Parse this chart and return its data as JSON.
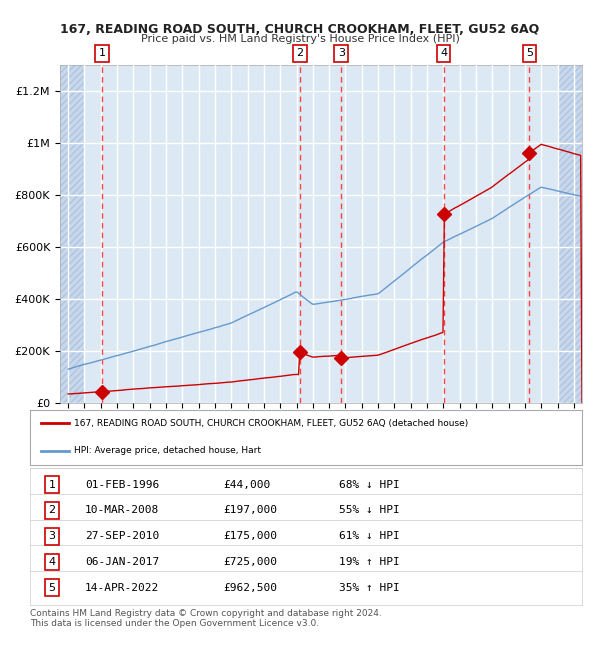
{
  "title_line1": "167, READING ROAD SOUTH, CHURCH CROOKHAM, FLEET, GU52 6AQ",
  "title_line2": "Price paid vs. HM Land Registry's House Price Index (HPI)",
  "background_color": "#dce9f5",
  "red_line_color": "#cc0000",
  "blue_line_color": "#6699cc",
  "sale_marker_color": "#cc0000",
  "sale_dates_x": [
    1996.08,
    2008.19,
    2010.74,
    2017.01,
    2022.28
  ],
  "sale_prices_y": [
    44000,
    197000,
    175000,
    725000,
    962500
  ],
  "sale_labels": [
    "1",
    "2",
    "3",
    "4",
    "5"
  ],
  "dashed_line_color": "#ff4444",
  "ylabel_ticks": [
    "£0",
    "£200K",
    "£400K",
    "£600K",
    "£800K",
    "£1M",
    "£1.2M"
  ],
  "ylabel_values": [
    0,
    200000,
    400000,
    600000,
    800000,
    1000000,
    1200000
  ],
  "ylim": [
    0,
    1300000
  ],
  "xlim_start": 1993.5,
  "xlim_end": 2025.5,
  "legend_red_label": "167, READING ROAD SOUTH, CHURCH CROOKHAM, FLEET, GU52 6AQ (detached house)",
  "legend_blue_label": "HPI: Average price, detached house, Hart",
  "table_data": [
    [
      "1",
      "01-FEB-1996",
      "£44,000",
      "68% ↓ HPI"
    ],
    [
      "2",
      "10-MAR-2008",
      "£197,000",
      "55% ↓ HPI"
    ],
    [
      "3",
      "27-SEP-2010",
      "£175,000",
      "61% ↓ HPI"
    ],
    [
      "4",
      "06-JAN-2017",
      "£725,000",
      "19% ↑ HPI"
    ],
    [
      "5",
      "14-APR-2022",
      "£962,500",
      "35% ↑ HPI"
    ]
  ],
  "footer": "Contains HM Land Registry data © Crown copyright and database right 2024.\nThis data is licensed under the Open Government Licence v3.0."
}
